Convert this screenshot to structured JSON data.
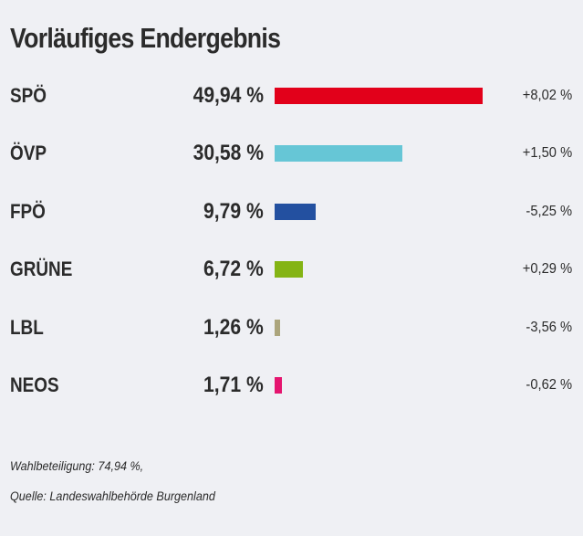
{
  "chart_data": {
    "type": "bar",
    "orientation": "horizontal",
    "title": "Vorläufiges Endergebnis",
    "categories": [
      "SPÖ",
      "ÖVP",
      "FPÖ",
      "GRÜNE",
      "LBL",
      "NEOS"
    ],
    "values": [
      49.94,
      30.58,
      9.79,
      6.72,
      1.26,
      1.71
    ],
    "value_labels": [
      "49,94 %",
      "30,58 %",
      "9,79 %",
      "6,72 %",
      "1,26 %",
      "1,71 %"
    ],
    "changes": [
      8.02,
      1.5,
      -5.25,
      0.29,
      -3.56,
      -0.62
    ],
    "change_labels": [
      "+8,02 %",
      "+1,50 %",
      "-5,25 %",
      "+0,29 %",
      "-3,56 %",
      "-0,62 %"
    ],
    "colors": [
      "#e2001a",
      "#66c6d6",
      "#2350a0",
      "#84b414",
      "#aca57c",
      "#e5156f"
    ],
    "xlabel": "",
    "ylabel": "",
    "grid": false,
    "legend": "none"
  },
  "footer": {
    "turnout": "Wahlbeteiligung: 74,94 %,",
    "source": "Quelle: Landeswahlbehörde Burgenland"
  }
}
